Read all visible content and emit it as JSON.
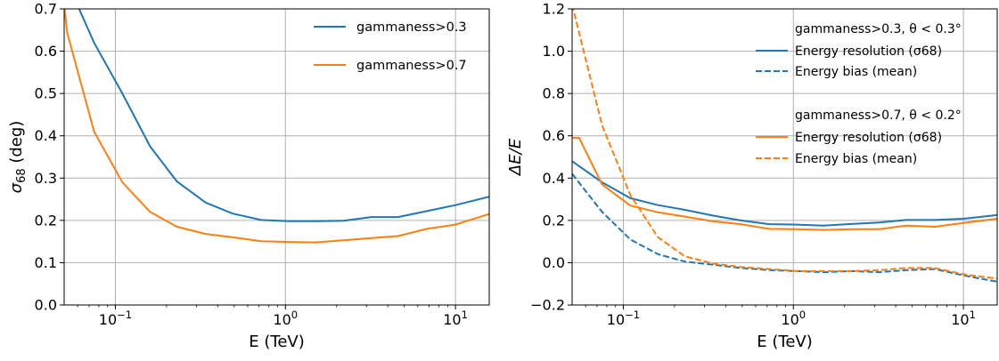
{
  "colors": {
    "blue": "#1f77b4",
    "orange": "#ff7f0e",
    "grid": "#b0b0b0"
  },
  "chart_data": [
    {
      "type": "line",
      "xscale": "log",
      "xlim": [
        0.05,
        15.8
      ],
      "ylim": [
        0.0,
        0.7
      ],
      "xlabel": "E (TeV)",
      "ylabel": "σ68 (deg)",
      "ylabel_main": "σ",
      "ylabel_sub": "68",
      "ylabel_rest": " (deg)",
      "grid": true,
      "legend_position": "top-right",
      "xticks": [
        {
          "value": 0.1,
          "base": "10",
          "exp": "−1"
        },
        {
          "value": 1,
          "base": "10",
          "exp": "0"
        },
        {
          "value": 10,
          "base": "10",
          "exp": "1"
        }
      ],
      "yticks": [
        {
          "value": 0.0,
          "label": "0.0"
        },
        {
          "value": 0.1,
          "label": "0.1"
        },
        {
          "value": 0.2,
          "label": "0.2"
        },
        {
          "value": 0.3,
          "label": "0.3"
        },
        {
          "value": 0.4,
          "label": "0.4"
        },
        {
          "value": 0.5,
          "label": "0.5"
        },
        {
          "value": 0.6,
          "label": "0.6"
        },
        {
          "value": 0.7,
          "label": "0.7"
        }
      ],
      "legend": [
        {
          "label": "gammaness>0.3",
          "color": "#1f77b4",
          "dash": "solid"
        },
        {
          "label": "gammaness>0.7",
          "color": "#ff7f0e",
          "dash": "solid"
        }
      ],
      "series": [
        {
          "name": "gammaness>0.3",
          "color": "#1f77b4",
          "dash": "solid",
          "x": [
            0.05,
            0.075,
            0.11,
            0.16,
            0.23,
            0.34,
            0.49,
            0.72,
            1.05,
            1.5,
            2.2,
            3.2,
            4.6,
            6.8,
            10,
            15.8
          ],
          "y": [
            0.78,
            0.62,
            0.5,
            0.375,
            0.292,
            0.242,
            0.216,
            0.201,
            0.198,
            0.198,
            0.199,
            0.208,
            0.208,
            0.222,
            0.236,
            0.256
          ]
        },
        {
          "name": "gammaness>0.7",
          "color": "#ff7f0e",
          "dash": "solid",
          "x": [
            0.05,
            0.052,
            0.075,
            0.11,
            0.16,
            0.23,
            0.34,
            0.49,
            0.72,
            1.05,
            1.5,
            2.2,
            3.2,
            4.6,
            6.8,
            10,
            15.8
          ],
          "y": [
            0.71,
            0.645,
            0.41,
            0.29,
            0.22,
            0.185,
            0.168,
            0.16,
            0.151,
            0.149,
            0.148,
            0.153,
            0.158,
            0.163,
            0.18,
            0.19,
            0.215
          ]
        }
      ]
    },
    {
      "type": "line",
      "xscale": "log",
      "xlim": [
        0.05,
        15.8
      ],
      "ylim": [
        -0.2,
        1.2
      ],
      "xlabel": "E (TeV)",
      "ylabel": "ΔE/E",
      "grid": true,
      "legend_position": "top-right",
      "xticks": [
        {
          "value": 0.1,
          "base": "10",
          "exp": "−1"
        },
        {
          "value": 1,
          "base": "10",
          "exp": "0"
        },
        {
          "value": 10,
          "base": "10",
          "exp": "1"
        }
      ],
      "yticks": [
        {
          "value": -0.2,
          "label": "−0.2"
        },
        {
          "value": 0.0,
          "label": "0.0"
        },
        {
          "value": 0.2,
          "label": "0.2"
        },
        {
          "value": 0.4,
          "label": "0.4"
        },
        {
          "value": 0.6,
          "label": "0.6"
        },
        {
          "value": 0.8,
          "label": "0.8"
        },
        {
          "value": 1.0,
          "label": "1.0"
        },
        {
          "value": 1.2,
          "label": "1.2"
        }
      ],
      "legend_groups": [
        {
          "title": "gammaness>0.3, θ < 0.3°",
          "entries": [
            {
              "label": "Energy resolution (σ68)",
              "color": "#1f77b4",
              "dash": "solid"
            },
            {
              "label": "Energy bias (mean)",
              "color": "#1f77b4",
              "dash": "dashed"
            }
          ]
        },
        {
          "title": "gammaness>0.7, θ < 0.2°",
          "entries": [
            {
              "label": "Energy resolution (σ68)",
              "color": "#ff7f0e",
              "dash": "solid"
            },
            {
              "label": "Energy bias (mean)",
              "color": "#ff7f0e",
              "dash": "dashed"
            }
          ]
        }
      ],
      "series": [
        {
          "name": "Energy resolution (σ68), gammaness>0.3",
          "color": "#1f77b4",
          "dash": "solid",
          "x": [
            0.05,
            0.075,
            0.11,
            0.16,
            0.23,
            0.34,
            0.49,
            0.72,
            1.05,
            1.5,
            2.2,
            3.2,
            4.6,
            6.8,
            10,
            15.8
          ],
          "y": [
            0.48,
            0.38,
            0.305,
            0.272,
            0.25,
            0.222,
            0.2,
            0.182,
            0.18,
            0.175,
            0.183,
            0.19,
            0.202,
            0.202,
            0.208,
            0.225
          ]
        },
        {
          "name": "Energy bias (mean), gammaness>0.3",
          "color": "#1f77b4",
          "dash": "dashed",
          "x": [
            0.05,
            0.075,
            0.11,
            0.16,
            0.23,
            0.34,
            0.49,
            0.72,
            1.05,
            1.5,
            2.2,
            3.2,
            4.6,
            6.8,
            10,
            15.8
          ],
          "y": [
            0.42,
            0.24,
            0.11,
            0.04,
            0.005,
            -0.01,
            -0.025,
            -0.035,
            -0.04,
            -0.045,
            -0.04,
            -0.045,
            -0.035,
            -0.03,
            -0.06,
            -0.09
          ]
        },
        {
          "name": "Energy resolution (σ68), gammaness>0.7",
          "color": "#ff7f0e",
          "dash": "solid",
          "x": [
            0.05,
            0.055,
            0.075,
            0.11,
            0.16,
            0.23,
            0.34,
            0.49,
            0.72,
            1.05,
            1.5,
            2.2,
            3.2,
            4.6,
            6.8,
            10,
            15.8
          ],
          "y": [
            0.59,
            0.59,
            0.37,
            0.27,
            0.238,
            0.218,
            0.195,
            0.182,
            0.16,
            0.158,
            0.155,
            0.158,
            0.158,
            0.175,
            0.17,
            0.188,
            0.208
          ]
        },
        {
          "name": "Energy bias (mean), gammaness>0.7",
          "color": "#ff7f0e",
          "dash": "dashed",
          "x": [
            0.05,
            0.075,
            0.11,
            0.16,
            0.23,
            0.34,
            0.49,
            0.72,
            1.05,
            1.5,
            2.2,
            3.2,
            4.6,
            6.8,
            10,
            15.8
          ],
          "y": [
            1.22,
            0.65,
            0.32,
            0.12,
            0.03,
            -0.005,
            -0.02,
            -0.03,
            -0.04,
            -0.04,
            -0.04,
            -0.035,
            -0.025,
            -0.025,
            -0.055,
            -0.075
          ]
        }
      ]
    }
  ]
}
